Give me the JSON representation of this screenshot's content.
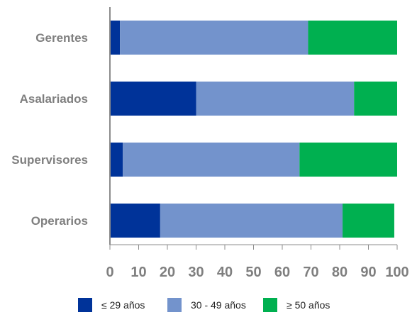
{
  "chart_data": {
    "type": "bar",
    "orientation": "horizontal",
    "stacked": true,
    "categories": [
      "Gerentes",
      "Asalariados",
      "Supervisores",
      "Operarios"
    ],
    "series": [
      {
        "name": "≤ 29 años",
        "color": "#003399",
        "values": [
          3.5,
          30,
          4.5,
          17.5
        ]
      },
      {
        "name": "30 - 49 años",
        "color": "#7393cc",
        "values": [
          65.5,
          55,
          61.5,
          63.5
        ]
      },
      {
        "name": "≥ 50 años",
        "color": "#00b050",
        "values": [
          31,
          15,
          34,
          18
        ]
      }
    ],
    "xlim": [
      0,
      100
    ],
    "xticks": [
      "0",
      "10",
      "20",
      "30",
      "40",
      "50",
      "60",
      "70",
      "80",
      "90",
      "100"
    ],
    "title": "",
    "xlabel": "",
    "ylabel": "",
    "grid": false,
    "legend_position": "bottom"
  }
}
